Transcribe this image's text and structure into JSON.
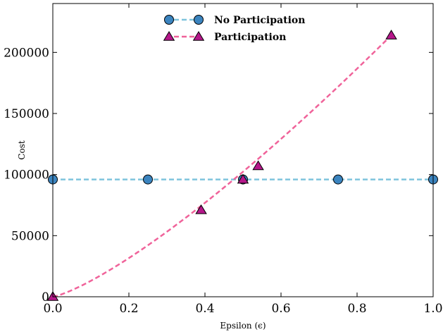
{
  "chart_data": {
    "type": "line",
    "xlabel": "Epsilon (ϵ)",
    "ylabel": "Cost",
    "xlim": [
      0.0,
      1.0
    ],
    "ylim": [
      0,
      240000
    ],
    "xticks": [
      "0.0",
      "0.2",
      "0.4",
      "0.6",
      "0.8",
      "1.0"
    ],
    "yticks": [
      "0",
      "50000",
      "100000",
      "150000",
      "200000"
    ],
    "grid": false,
    "legend_position": "top-center",
    "series": [
      {
        "name": "No Participation",
        "marker": "circle",
        "line_color": "#7fc4dd",
        "marker_color": "#3b84bf",
        "line_style": "dashed",
        "points": [
          [
            0.0,
            96000
          ],
          [
            0.25,
            96000
          ],
          [
            0.5,
            96000
          ],
          [
            0.75,
            96000
          ],
          [
            1.0,
            96000
          ]
        ]
      },
      {
        "name": "Participation",
        "marker": "triangle",
        "line_color": "#f0639a",
        "marker_color": "#b5178a",
        "line_style": "dashed",
        "points": [
          [
            0.0,
            0
          ],
          [
            0.39,
            71000
          ],
          [
            0.5,
            96000
          ],
          [
            0.54,
            107000
          ],
          [
            0.89,
            214000
          ]
        ],
        "curve_exponent": 1.28
      }
    ]
  }
}
